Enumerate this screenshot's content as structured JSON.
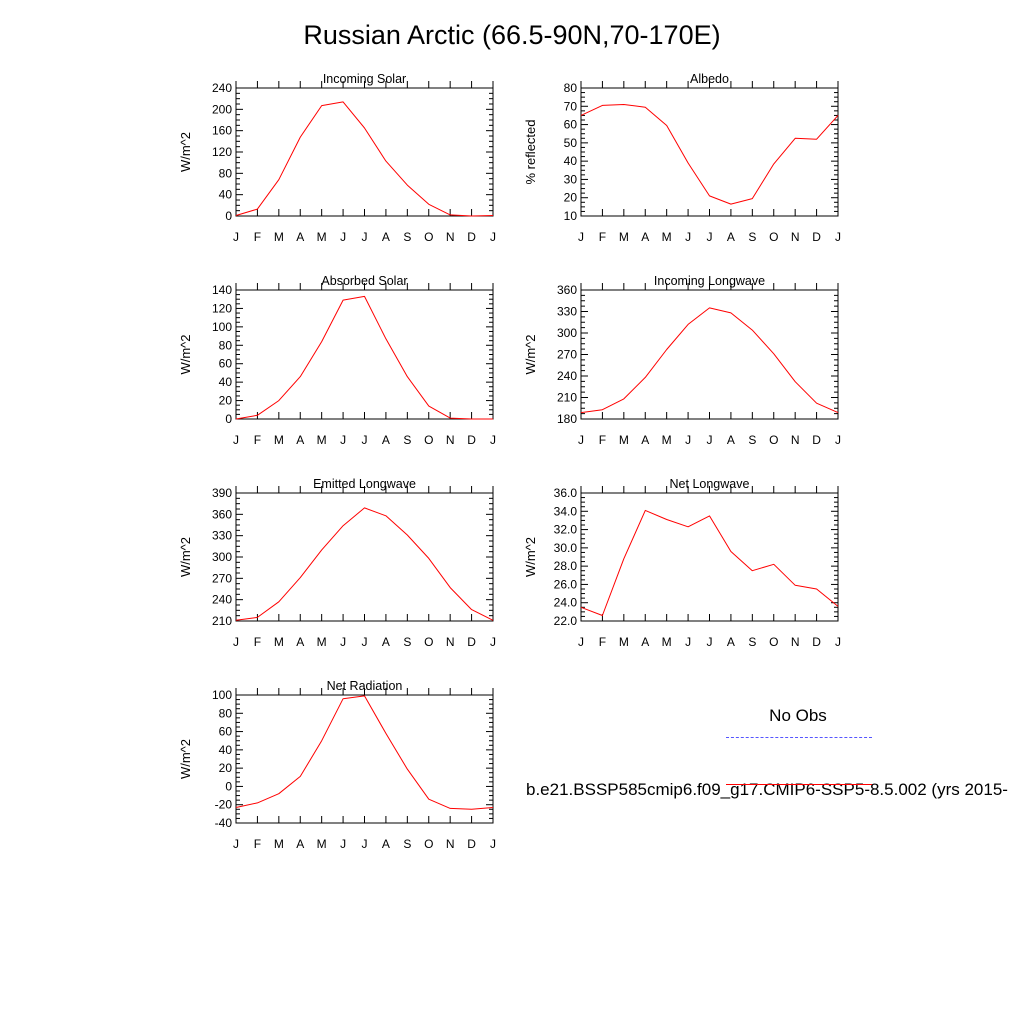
{
  "page": {
    "title": "Russian Arctic (66.5-90N,70-170E)"
  },
  "legend": {
    "obs_label": "No Obs",
    "model_label": "b.e21.BSSP585cmip6.f09_g17.CMIP6-SSP5-8.5.002 (yrs 2015-",
    "obs_color": "#5555ff",
    "model_color": "#ff0000"
  },
  "chart_data": [
    {
      "type": "line",
      "title": "Incoming Solar",
      "ylabel": "W/m^2",
      "categories": [
        "J",
        "F",
        "M",
        "A",
        "M",
        "J",
        "J",
        "A",
        "S",
        "O",
        "N",
        "D",
        "J"
      ],
      "ylim": [
        0,
        240
      ],
      "yticks": [
        "0",
        "40",
        "80",
        "120",
        "160",
        "200",
        "240"
      ],
      "series": [
        {
          "color": "#ff0000",
          "values": [
            1,
            13,
            68,
            148,
            207,
            214,
            165,
            103,
            58,
            22,
            2,
            0,
            1
          ]
        }
      ]
    },
    {
      "type": "line",
      "title": "Albedo",
      "ylabel": "% reflected",
      "categories": [
        "J",
        "F",
        "M",
        "A",
        "M",
        "J",
        "J",
        "A",
        "S",
        "O",
        "N",
        "D",
        "J"
      ],
      "ylim": [
        10,
        80
      ],
      "yticks": [
        "10",
        "20",
        "30",
        "40",
        "50",
        "60",
        "70",
        "80"
      ],
      "series": [
        {
          "color": "#ff0000",
          "values": [
            65,
            70.5,
            71,
            69.5,
            59.5,
            39,
            21,
            16.5,
            19.5,
            38.5,
            52.5,
            52,
            65
          ]
        }
      ]
    },
    {
      "type": "line",
      "title": "Absorbed Solar",
      "ylabel": "W/m^2",
      "categories": [
        "J",
        "F",
        "M",
        "A",
        "M",
        "J",
        "J",
        "A",
        "S",
        "O",
        "N",
        "D",
        "J"
      ],
      "ylim": [
        0,
        140
      ],
      "yticks": [
        "0",
        "20",
        "40",
        "60",
        "80",
        "100",
        "120",
        "140"
      ],
      "series": [
        {
          "color": "#ff0000",
          "values": [
            0,
            4,
            20,
            46,
            84,
            129,
            133,
            87,
            46,
            14,
            1,
            0,
            0
          ]
        }
      ]
    },
    {
      "type": "line",
      "title": "Incoming Longwave",
      "ylabel": "W/m^2",
      "categories": [
        "J",
        "F",
        "M",
        "A",
        "M",
        "J",
        "J",
        "A",
        "S",
        "O",
        "N",
        "D",
        "J"
      ],
      "ylim": [
        180,
        360
      ],
      "yticks": [
        "180",
        "210",
        "240",
        "270",
        "300",
        "330",
        "360"
      ],
      "series": [
        {
          "color": "#ff0000",
          "values": [
            189,
            193,
            208,
            238,
            277,
            312,
            335,
            328,
            304,
            271,
            232,
            202,
            189
          ]
        }
      ]
    },
    {
      "type": "line",
      "title": "Emitted Longwave",
      "ylabel": "W/m^2",
      "categories": [
        "J",
        "F",
        "M",
        "A",
        "M",
        "J",
        "J",
        "A",
        "S",
        "O",
        "N",
        "D",
        "J"
      ],
      "ylim": [
        210,
        390
      ],
      "yticks": [
        "210",
        "240",
        "270",
        "300",
        "330",
        "360",
        "390"
      ],
      "series": [
        {
          "color": "#ff0000",
          "values": [
            211,
            215,
            237,
            271,
            310,
            344,
            369,
            358,
            331,
            298,
            257,
            226,
            211
          ]
        }
      ]
    },
    {
      "type": "line",
      "title": "Net Longwave",
      "ylabel": "W/m^2",
      "categories": [
        "J",
        "F",
        "M",
        "A",
        "M",
        "J",
        "J",
        "A",
        "S",
        "O",
        "N",
        "D",
        "J"
      ],
      "ylim": [
        22,
        36
      ],
      "yticks": [
        "22.0",
        "24.0",
        "26.0",
        "28.0",
        "30.0",
        "32.0",
        "34.0",
        "36.0"
      ],
      "series": [
        {
          "color": "#ff0000",
          "values": [
            23.5,
            22.6,
            28.8,
            34.1,
            33.1,
            32.3,
            33.5,
            29.6,
            27.5,
            28.2,
            25.9,
            25.5,
            23.6
          ]
        }
      ]
    },
    {
      "type": "line",
      "title": "Net Radiation",
      "ylabel": "W/m^2",
      "categories": [
        "J",
        "F",
        "M",
        "A",
        "M",
        "J",
        "J",
        "A",
        "S",
        "O",
        "N",
        "D",
        "J"
      ],
      "ylim": [
        -40,
        100
      ],
      "yticks": [
        "-40",
        "-20",
        "0",
        "20",
        "40",
        "60",
        "80",
        "100"
      ],
      "series": [
        {
          "color": "#ff0000",
          "values": [
            -23,
            -18,
            -8,
            11,
            50,
            96,
            99,
            58,
            19,
            -14,
            -24,
            -25,
            -23
          ]
        }
      ]
    }
  ]
}
